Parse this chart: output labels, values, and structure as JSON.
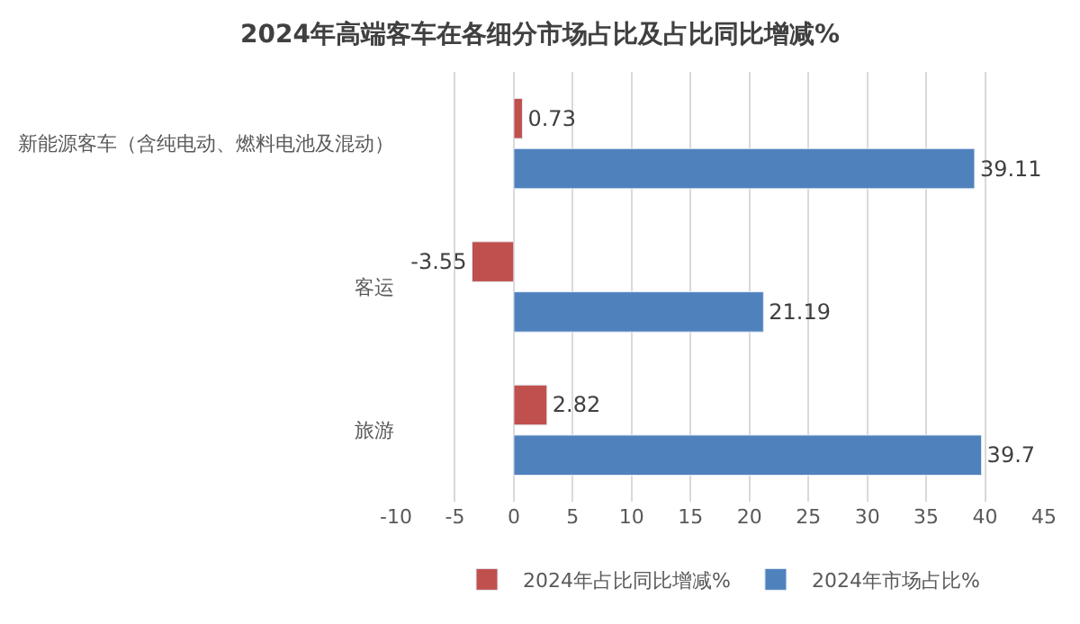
{
  "chart_data": {
    "type": "bar",
    "orientation": "horizontal",
    "title": "2024年高端客车在各细分市场占比及占比同比增减%",
    "categories": [
      "新能源客车（含纯电动、燃料电池及混动）",
      "客运",
      "旅游"
    ],
    "series": [
      {
        "name": "2024年占比同比增减%",
        "color": "#c0504d",
        "values": [
          0.73,
          -3.55,
          2.82
        ]
      },
      {
        "name": "2024年市场占比%",
        "color": "#4f81bd",
        "values": [
          39.11,
          21.19,
          39.7
        ]
      }
    ],
    "xlim": [
      -10,
      45
    ],
    "xticks": [
      -10,
      -5,
      0,
      5,
      10,
      15,
      20,
      25,
      30,
      35,
      40,
      45
    ],
    "grid": "x",
    "legend": "bottom",
    "data_labels": true
  }
}
